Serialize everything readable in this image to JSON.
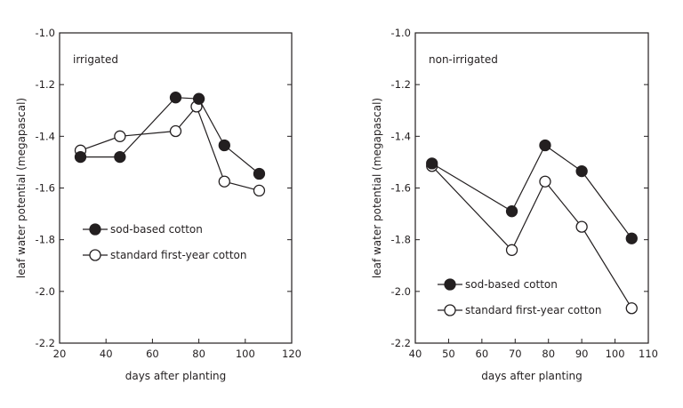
{
  "chart_data": [
    {
      "type": "line",
      "panel_label": "irrigated",
      "xlabel": "days after planting",
      "ylabel": "leaf water potential (megapascal)",
      "xlim": [
        20,
        120
      ],
      "ylim": [
        -2.2,
        -1.0
      ],
      "x_ticks": [
        "20",
        "40",
        "60",
        "80",
        "100",
        "120"
      ],
      "y_ticks": [
        "-1.0",
        "-1.2",
        "-1.4",
        "-1.6",
        "-1.8",
        "-2.0",
        "-2.2"
      ],
      "legend_position": "lower-left",
      "series": [
        {
          "name": "sod-based cotton",
          "marker": "filled-circle",
          "x": [
            29,
            46,
            70,
            80,
            91,
            106
          ],
          "y": [
            -1.48,
            -1.48,
            -1.25,
            -1.255,
            -1.435,
            -1.545
          ]
        },
        {
          "name": "standard first-year cotton",
          "marker": "open-circle",
          "x": [
            29,
            46,
            70,
            79,
            91,
            106
          ],
          "y": [
            -1.455,
            -1.4,
            -1.38,
            -1.285,
            -1.575,
            -1.61
          ]
        }
      ]
    },
    {
      "type": "line",
      "panel_label": "non-irrigated",
      "xlabel": "days after planting",
      "ylabel": "leaf water potential (megapascal)",
      "xlim": [
        40,
        110
      ],
      "ylim": [
        -2.2,
        -1.0
      ],
      "x_ticks": [
        "40",
        "50",
        "60",
        "70",
        "80",
        "90",
        "100",
        "110"
      ],
      "y_ticks": [
        "-1.0",
        "-1.2",
        "-1.4",
        "-1.6",
        "-1.8",
        "-2.0",
        "-2.2"
      ],
      "legend_position": "lower-left",
      "series": [
        {
          "name": "sod-based cotton",
          "marker": "filled-circle",
          "x": [
            45,
            69,
            79,
            90,
            105
          ],
          "y": [
            -1.505,
            -1.69,
            -1.435,
            -1.535,
            -1.795
          ]
        },
        {
          "name": "standard first-year cotton",
          "marker": "open-circle",
          "x": [
            45,
            69,
            79,
            90,
            105
          ],
          "y": [
            -1.515,
            -1.84,
            -1.575,
            -1.75,
            -2.065
          ]
        }
      ]
    }
  ]
}
